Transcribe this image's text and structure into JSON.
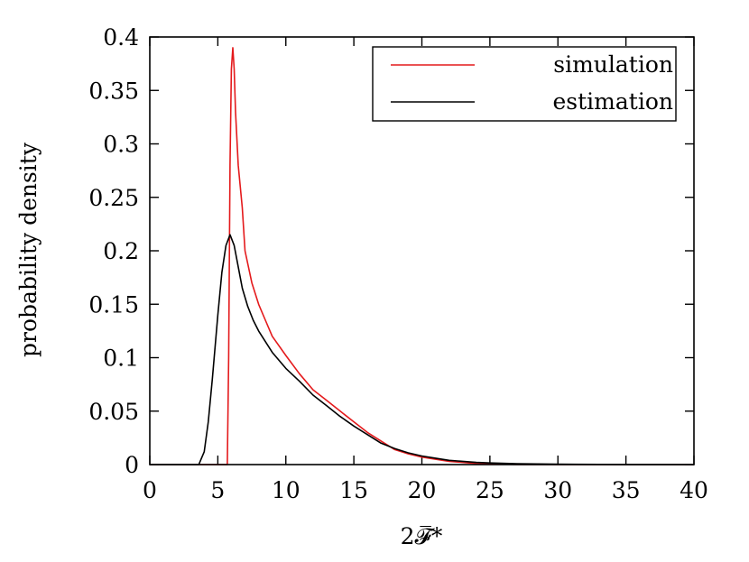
{
  "chart_data": {
    "type": "line",
    "title": "",
    "xlabel": "2𝓕̅*",
    "ylabel": "probability density",
    "xlim": [
      0,
      40
    ],
    "ylim": [
      0,
      0.4
    ],
    "xticks": [
      "0",
      "5",
      "10",
      "15",
      "20",
      "25",
      "30",
      "35",
      "40"
    ],
    "yticks": [
      "0",
      "0.05",
      "0.1",
      "0.15",
      "0.2",
      "0.25",
      "0.3",
      "0.35",
      "0.4"
    ],
    "grid": false,
    "legend_position": "top-right",
    "series": [
      {
        "name": "simulation",
        "color": "#e41a1c",
        "x": [
          0,
          5.7,
          5.8,
          5.9,
          6.0,
          6.1,
          6.2,
          6.3,
          6.5,
          6.8,
          7.0,
          7.5,
          8,
          8.5,
          9,
          10,
          11,
          12,
          13,
          14,
          15,
          16,
          17,
          18,
          19,
          20,
          21,
          22,
          23,
          24,
          25,
          27,
          30,
          35,
          40
        ],
        "y": [
          0,
          0,
          0.1,
          0.28,
          0.37,
          0.39,
          0.37,
          0.33,
          0.28,
          0.24,
          0.2,
          0.17,
          0.15,
          0.135,
          0.12,
          0.102,
          0.085,
          0.07,
          0.06,
          0.05,
          0.04,
          0.03,
          0.022,
          0.014,
          0.01,
          0.007,
          0.005,
          0.003,
          0.002,
          0.001,
          0.0005,
          0.0002,
          0.0001,
          0,
          0
        ]
      },
      {
        "name": "estimation",
        "color": "#000000",
        "x": [
          0,
          3.6,
          4.0,
          4.3,
          4.6,
          5.0,
          5.3,
          5.6,
          5.9,
          6.2,
          6.5,
          6.8,
          7.2,
          7.6,
          8,
          8.5,
          9,
          10,
          11,
          12,
          13,
          14,
          15,
          16,
          17,
          18,
          19,
          20,
          21,
          22,
          23,
          24,
          25,
          27,
          30,
          35,
          40
        ],
        "y": [
          0,
          0,
          0.012,
          0.04,
          0.08,
          0.14,
          0.18,
          0.205,
          0.215,
          0.205,
          0.185,
          0.165,
          0.148,
          0.135,
          0.125,
          0.115,
          0.105,
          0.09,
          0.078,
          0.065,
          0.055,
          0.045,
          0.036,
          0.028,
          0.02,
          0.015,
          0.011,
          0.008,
          0.006,
          0.004,
          0.003,
          0.002,
          0.0015,
          0.0008,
          0.0003,
          0.0001,
          0
        ]
      }
    ]
  }
}
